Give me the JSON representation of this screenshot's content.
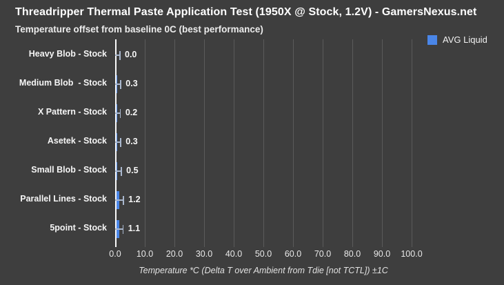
{
  "header": {
    "title": "Threadripper Thermal Paste Application Test (1950X @ Stock, 1.2V) - GamersNexus.net",
    "subtitle": "Temperature offset from baseline 0C (best performance)"
  },
  "legend": {
    "label": "AVG Liquid",
    "swatch_color": "#4a86e8"
  },
  "chart_data": {
    "type": "bar",
    "orientation": "horizontal",
    "title": "Threadripper Thermal Paste Application Test (1950X @ Stock, 1.2V) - GamersNexus.net",
    "subtitle": "Temperature offset from baseline 0C (best performance)",
    "categories": [
      "Heavy Blob - Stock",
      "Medium Blob  - Stock",
      "X Pattern - Stock",
      "Asetek - Stock",
      "Small Blob - Stock",
      "Parallel Lines - Stock",
      "5point - Stock"
    ],
    "series": [
      {
        "name": "AVG Liquid",
        "values": [
          0.0,
          0.3,
          0.2,
          0.3,
          0.5,
          1.2,
          1.1
        ]
      }
    ],
    "value_labels": [
      "0.0",
      "0.3",
      "0.2",
      "0.3",
      "0.5",
      "1.2",
      "1.1"
    ],
    "error_margin": "±1C",
    "x_ticks": [
      "0.0",
      "10.0",
      "20.0",
      "30.0",
      "40.0",
      "50.0",
      "60.0",
      "70.0",
      "80.0",
      "90.0",
      "100.0"
    ],
    "x_tick_values": [
      0,
      10,
      20,
      30,
      40,
      50,
      60,
      70,
      80,
      90,
      100
    ],
    "xlabel": "Temperature *C (Delta T over Ambient from Tdie [not TCTL]) ±1C",
    "ylabel": "",
    "xlim": [
      0,
      131
    ],
    "grid": true,
    "legend_position": "top-right",
    "colors": {
      "background": "#3e3e3e",
      "bar": "#4a86e8",
      "gridline": "#5b5b5b",
      "axis_line": "#fafafa",
      "error_bar": "#aab8ce",
      "text": "#ffffff"
    }
  }
}
